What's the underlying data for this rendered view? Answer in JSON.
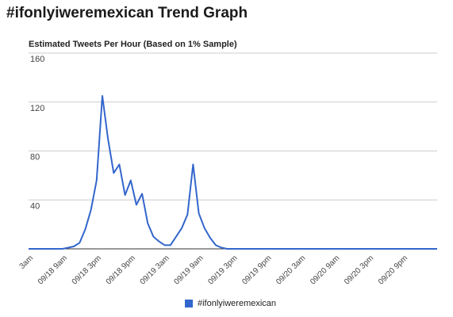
{
  "page": {
    "title": "#ifonlyiweremexican Trend Graph"
  },
  "chart_data": {
    "type": "line",
    "title": "Estimated Tweets Per Hour (Based on 1% Sample)",
    "xlabel": "",
    "ylabel": "",
    "ylim": [
      0,
      160
    ],
    "yticks": [
      40,
      80,
      120,
      160
    ],
    "grid": true,
    "legend": "bottom",
    "color": "#3366cc",
    "x_tick_labels": [
      "3am",
      "09/18 9am",
      "09/18 3pm",
      "09/18 9pm",
      "09/19 3am",
      "09/19 9am",
      "09/19 3pm",
      "09/19 9pm",
      "09/20 3am",
      "09/20 9am",
      "09/20 3pm",
      "09/20 9pm"
    ],
    "x_tick_hours": [
      0,
      6,
      12,
      18,
      24,
      30,
      36,
      42,
      48,
      54,
      60,
      66
    ],
    "x_range_hours": [
      0,
      72
    ],
    "series": [
      {
        "name": "#ifonlyiweremexican",
        "points": [
          [
            0,
            0
          ],
          [
            2,
            0
          ],
          [
            4,
            0
          ],
          [
            6,
            0
          ],
          [
            7,
            1
          ],
          [
            8,
            2
          ],
          [
            9,
            5
          ],
          [
            10,
            16
          ],
          [
            11,
            32
          ],
          [
            12,
            56
          ],
          [
            13,
            125
          ],
          [
            14,
            90
          ],
          [
            15,
            62
          ],
          [
            16,
            69
          ],
          [
            17,
            44
          ],
          [
            18,
            56
          ],
          [
            19,
            36
          ],
          [
            20,
            45
          ],
          [
            21,
            21
          ],
          [
            22,
            10
          ],
          [
            23,
            6
          ],
          [
            24,
            3
          ],
          [
            25,
            3
          ],
          [
            26,
            10
          ],
          [
            27,
            17
          ],
          [
            28,
            28
          ],
          [
            29,
            69
          ],
          [
            30,
            29
          ],
          [
            31,
            17
          ],
          [
            32,
            9
          ],
          [
            33,
            3
          ],
          [
            34,
            1
          ],
          [
            35,
            0
          ],
          [
            36,
            0
          ],
          [
            40,
            0
          ],
          [
            48,
            0
          ],
          [
            56,
            0
          ],
          [
            64,
            0
          ],
          [
            72,
            0
          ]
        ]
      }
    ]
  }
}
